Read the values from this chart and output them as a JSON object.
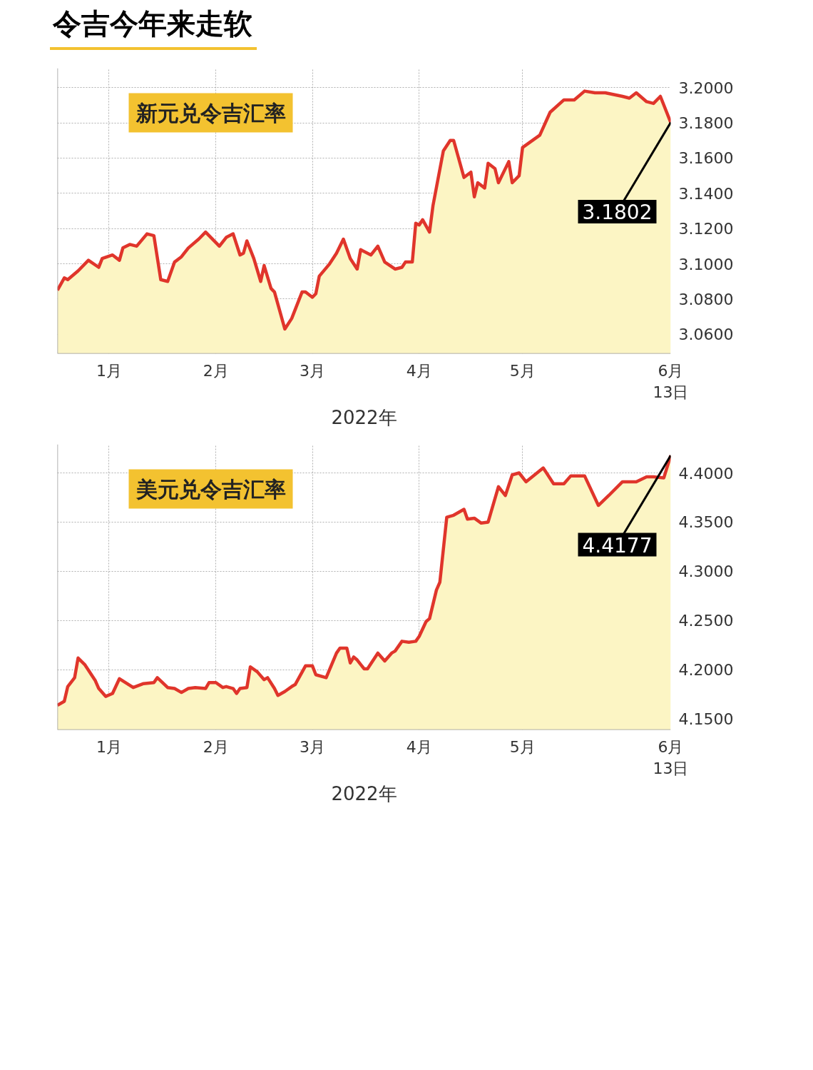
{
  "chart_data": [
    {
      "type": "area",
      "title": "令吉今年来走软",
      "subtitle": "新元兑令吉汇率",
      "xlabel": "2022年",
      "x": [
        "2021-12-17",
        "2021-12-19",
        "2021-12-20",
        "2021-12-23",
        "2021-12-26",
        "2021-12-29",
        "2021-12-30",
        "2022-01-02",
        "2022-01-04",
        "2022-01-05",
        "2022-01-07",
        "2022-01-09",
        "2022-01-12",
        "2022-01-14",
        "2022-01-16",
        "2022-01-18",
        "2022-01-20",
        "2022-01-22",
        "2022-01-24",
        "2022-01-27",
        "2022-01-29",
        "2022-02-01",
        "2022-02-02",
        "2022-02-04",
        "2022-02-06",
        "2022-02-08",
        "2022-02-09",
        "2022-02-10",
        "2022-02-12",
        "2022-02-14",
        "2022-02-15",
        "2022-02-17",
        "2022-02-18",
        "2022-02-21",
        "2022-02-23",
        "2022-02-26",
        "2022-02-27",
        "2022-03-01",
        "2022-03-02",
        "2022-03-03",
        "2022-03-06",
        "2022-03-08",
        "2022-03-10",
        "2022-03-12",
        "2022-03-14",
        "2022-03-15",
        "2022-03-18",
        "2022-03-20",
        "2022-03-22",
        "2022-03-25",
        "2022-03-27",
        "2022-03-28",
        "2022-03-30",
        "2022-03-31",
        "2022-04-01",
        "2022-04-02",
        "2022-04-04",
        "2022-04-05",
        "2022-04-08",
        "2022-04-10",
        "2022-04-11",
        "2022-04-14",
        "2022-04-16",
        "2022-04-17",
        "2022-04-18",
        "2022-04-20",
        "2022-04-21",
        "2022-04-23",
        "2022-04-24",
        "2022-04-27",
        "2022-04-28",
        "2022-04-30",
        "2022-05-01",
        "2022-05-06",
        "2022-05-09",
        "2022-05-13",
        "2022-05-16",
        "2022-05-19",
        "2022-05-22",
        "2022-05-25",
        "2022-05-30",
        "2022-06-01",
        "2022-06-03",
        "2022-06-06",
        "2022-06-08",
        "2022-06-10",
        "2022-06-13"
      ],
      "series": [
        {
          "color": "#e0352b",
          "values": [
            3.085,
            3.092,
            3.091,
            3.096,
            3.102,
            3.098,
            3.103,
            3.105,
            3.102,
            3.109,
            3.111,
            3.11,
            3.117,
            3.116,
            3.091,
            3.09,
            3.101,
            3.104,
            3.109,
            3.114,
            3.118,
            3.112,
            3.11,
            3.115,
            3.117,
            3.105,
            3.106,
            3.113,
            3.103,
            3.09,
            3.099,
            3.086,
            3.084,
            3.063,
            3.069,
            3.084,
            3.084,
            3.081,
            3.083,
            3.093,
            3.1,
            3.106,
            3.114,
            3.103,
            3.097,
            3.108,
            3.105,
            3.11,
            3.101,
            3.097,
            3.098,
            3.101,
            3.101,
            3.123,
            3.122,
            3.125,
            3.118,
            3.133,
            3.164,
            3.17,
            3.17,
            3.149,
            3.152,
            3.138,
            3.146,
            3.143,
            3.157,
            3.154,
            3.146,
            3.158,
            3.146,
            3.15,
            3.166,
            3.173,
            3.186,
            3.193,
            3.193,
            3.198,
            3.197,
            3.197,
            3.195,
            3.194,
            3.197,
            3.192,
            3.191,
            3.195,
            3.1802
          ]
        }
      ],
      "xlim": [
        "2021-12-17",
        "2022-06-13"
      ],
      "xticks": [
        {
          "value": "2022-01-01",
          "label": "1月"
        },
        {
          "value": "2022-02-01",
          "label": "2月"
        },
        {
          "value": "2022-03-01",
          "label": "3月"
        },
        {
          "value": "2022-04-01",
          "label": "4月"
        },
        {
          "value": "2022-05-01",
          "label": "5月"
        },
        {
          "value": "2022-06-13",
          "label": "6月\n13日"
        }
      ],
      "ylim": [
        3.049,
        3.211
      ],
      "yticks": [
        {
          "value": 3.06,
          "label": "3.0600"
        },
        {
          "value": 3.08,
          "label": "3.0800"
        },
        {
          "value": 3.1,
          "label": "3.1000"
        },
        {
          "value": 3.12,
          "label": "3.1200"
        },
        {
          "value": 3.14,
          "label": "3.1400"
        },
        {
          "value": 3.16,
          "label": "3.1600"
        },
        {
          "value": 3.18,
          "label": "3.1800"
        },
        {
          "value": 3.2,
          "label": "3.2000"
        }
      ],
      "grid": true,
      "annotations": [
        {
          "text": "3.1802",
          "x": "2022-06-13",
          "y": 3.1802
        }
      ]
    },
    {
      "type": "area",
      "subtitle": "美元兑令吉汇率",
      "xlabel": "2022年",
      "x": [
        "2021-12-17",
        "2021-12-19",
        "2021-12-20",
        "2021-12-22",
        "2021-12-23",
        "2021-12-25",
        "2021-12-28",
        "2021-12-29",
        "2021-12-31",
        "2022-01-02",
        "2022-01-04",
        "2022-01-08",
        "2022-01-11",
        "2022-01-14",
        "2022-01-15",
        "2022-01-18",
        "2022-01-20",
        "2022-01-22",
        "2022-01-24",
        "2022-01-26",
        "2022-01-29",
        "2022-01-30",
        "2022-02-01",
        "2022-02-03",
        "2022-02-04",
        "2022-02-06",
        "2022-02-07",
        "2022-02-08",
        "2022-02-10",
        "2022-02-11",
        "2022-02-13",
        "2022-02-15",
        "2022-02-16",
        "2022-02-18",
        "2022-02-19",
        "2022-02-21",
        "2022-02-23",
        "2022-02-24",
        "2022-02-27",
        "2022-03-01",
        "2022-03-02",
        "2022-03-05",
        "2022-03-08",
        "2022-03-09",
        "2022-03-11",
        "2022-03-12",
        "2022-03-13",
        "2022-03-14",
        "2022-03-16",
        "2022-03-17",
        "2022-03-20",
        "2022-03-22",
        "2022-03-24",
        "2022-03-25",
        "2022-03-27",
        "2022-03-29",
        "2022-03-31",
        "2022-04-01",
        "2022-04-03",
        "2022-04-04",
        "2022-04-06",
        "2022-04-07",
        "2022-04-09",
        "2022-04-11",
        "2022-04-14",
        "2022-04-15",
        "2022-04-17",
        "2022-04-19",
        "2022-04-21",
        "2022-04-24",
        "2022-04-26",
        "2022-04-28",
        "2022-04-30",
        "2022-05-02",
        "2022-05-07",
        "2022-05-10",
        "2022-05-13",
        "2022-05-15",
        "2022-05-19",
        "2022-05-23",
        "2022-05-26",
        "2022-05-30",
        "2022-06-03",
        "2022-06-06",
        "2022-06-08",
        "2022-06-11",
        "2022-06-13"
      ],
      "series": [
        {
          "color": "#e0352b",
          "values": [
            4.164,
            4.168,
            4.183,
            4.192,
            4.212,
            4.205,
            4.189,
            4.181,
            4.173,
            4.176,
            4.191,
            4.182,
            4.186,
            4.187,
            4.192,
            4.182,
            4.181,
            4.177,
            4.181,
            4.182,
            4.181,
            4.187,
            4.187,
            4.182,
            4.183,
            4.181,
            4.176,
            4.181,
            4.182,
            4.203,
            4.198,
            4.19,
            4.192,
            4.181,
            4.174,
            4.178,
            4.183,
            4.185,
            4.204,
            4.204,
            4.195,
            4.192,
            4.217,
            4.222,
            4.222,
            4.207,
            4.213,
            4.21,
            4.201,
            4.201,
            4.217,
            4.209,
            4.217,
            4.219,
            4.229,
            4.228,
            4.229,
            4.234,
            4.249,
            4.252,
            4.281,
            4.289,
            4.355,
            4.357,
            4.363,
            4.353,
            4.354,
            4.349,
            4.35,
            4.386,
            4.377,
            4.398,
            4.4,
            4.391,
            4.405,
            4.389,
            4.389,
            4.397,
            4.397,
            4.367,
            4.377,
            4.391,
            4.391,
            4.396,
            4.396,
            4.395,
            4.4177
          ]
        }
      ],
      "xlim": [
        "2021-12-17",
        "2022-06-13"
      ],
      "xticks": [
        {
          "value": "2022-01-01",
          "label": "1月"
        },
        {
          "value": "2022-02-01",
          "label": "2月"
        },
        {
          "value": "2022-03-01",
          "label": "3月"
        },
        {
          "value": "2022-04-01",
          "label": "4月"
        },
        {
          "value": "2022-05-01",
          "label": "5月"
        },
        {
          "value": "2022-06-13",
          "label": "6月\n13日"
        }
      ],
      "ylim": [
        4.139,
        4.429
      ],
      "yticks": [
        {
          "value": 4.15,
          "label": "4.1500"
        },
        {
          "value": 4.2,
          "label": "4.2000"
        },
        {
          "value": 4.25,
          "label": "4.2500"
        },
        {
          "value": 4.3,
          "label": "4.3000"
        },
        {
          "value": 4.35,
          "label": "4.3500"
        },
        {
          "value": 4.4,
          "label": "4.4000"
        }
      ],
      "grid": true,
      "annotations": [
        {
          "text": "4.4177",
          "x": "2022-06-13",
          "y": 4.4177
        }
      ]
    }
  ]
}
